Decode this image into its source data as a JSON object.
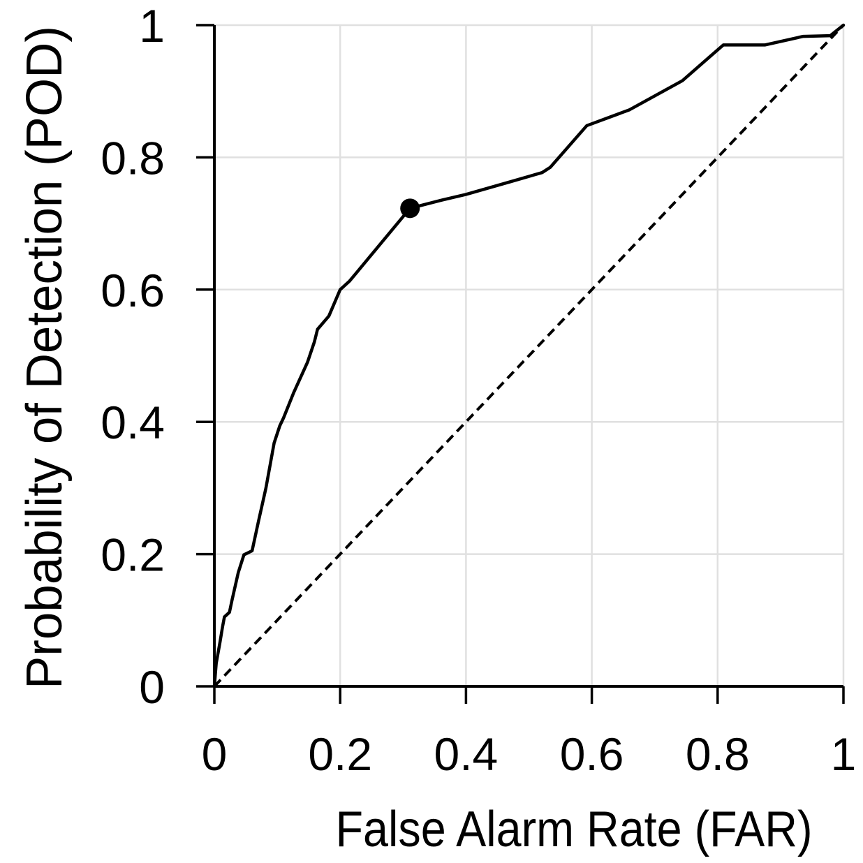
{
  "colors": {
    "background": "#ffffff",
    "text": "#000000",
    "gridline": "#e0e0e0",
    "axis": "#000000",
    "roc_curve": "#000000",
    "no_skill_line": "#000000",
    "marker": "#000000"
  },
  "chart_data": {
    "type": "line",
    "title": "",
    "xlabel": "False Alarm Rate (FAR)",
    "ylabel": "Probability of Detection (POD)",
    "xlim": [
      0,
      1
    ],
    "ylim": [
      0,
      1
    ],
    "grid": true,
    "tick_values": [
      0,
      0.2,
      0.4,
      0.6,
      0.8,
      1
    ],
    "x_tick_labels": [
      "0",
      "0.2",
      "0.4",
      "0.6",
      "0.8",
      "1"
    ],
    "y_tick_labels": [
      "0",
      "0.2",
      "0.4",
      "0.6",
      "0.8",
      "1"
    ],
    "legend": false,
    "roc_curve": {
      "line_style": "solid",
      "points": [
        [
          0,
          0
        ],
        [
          0.003,
          0.035
        ],
        [
          0.009,
          0.067
        ],
        [
          0.013,
          0.09
        ],
        [
          0.016,
          0.105
        ],
        [
          0.024,
          0.112
        ],
        [
          0.028,
          0.13
        ],
        [
          0.038,
          0.172
        ],
        [
          0.047,
          0.199
        ],
        [
          0.06,
          0.205
        ],
        [
          0.07,
          0.249
        ],
        [
          0.082,
          0.3
        ],
        [
          0.095,
          0.368
        ],
        [
          0.104,
          0.394
        ],
        [
          0.11,
          0.406
        ],
        [
          0.126,
          0.444
        ],
        [
          0.148,
          0.49
        ],
        [
          0.159,
          0.521
        ],
        [
          0.164,
          0.54
        ],
        [
          0.182,
          0.56
        ],
        [
          0.2,
          0.6
        ],
        [
          0.215,
          0.613
        ],
        [
          0.311,
          0.723
        ],
        [
          0.36,
          0.735
        ],
        [
          0.4,
          0.744
        ],
        [
          0.47,
          0.763
        ],
        [
          0.521,
          0.777
        ],
        [
          0.534,
          0.785
        ],
        [
          0.592,
          0.848
        ],
        [
          0.66,
          0.872
        ],
        [
          0.744,
          0.916
        ],
        [
          0.809,
          0.97
        ],
        [
          0.875,
          0.97
        ],
        [
          0.936,
          0.983
        ],
        [
          0.979,
          0.984
        ],
        [
          1,
          1
        ]
      ]
    },
    "no_skill_line": {
      "line_style": "dashed",
      "points": [
        [
          0,
          0
        ],
        [
          1,
          1
        ]
      ]
    },
    "marker_point": {
      "far": 0.311,
      "pod": 0.723
    }
  }
}
